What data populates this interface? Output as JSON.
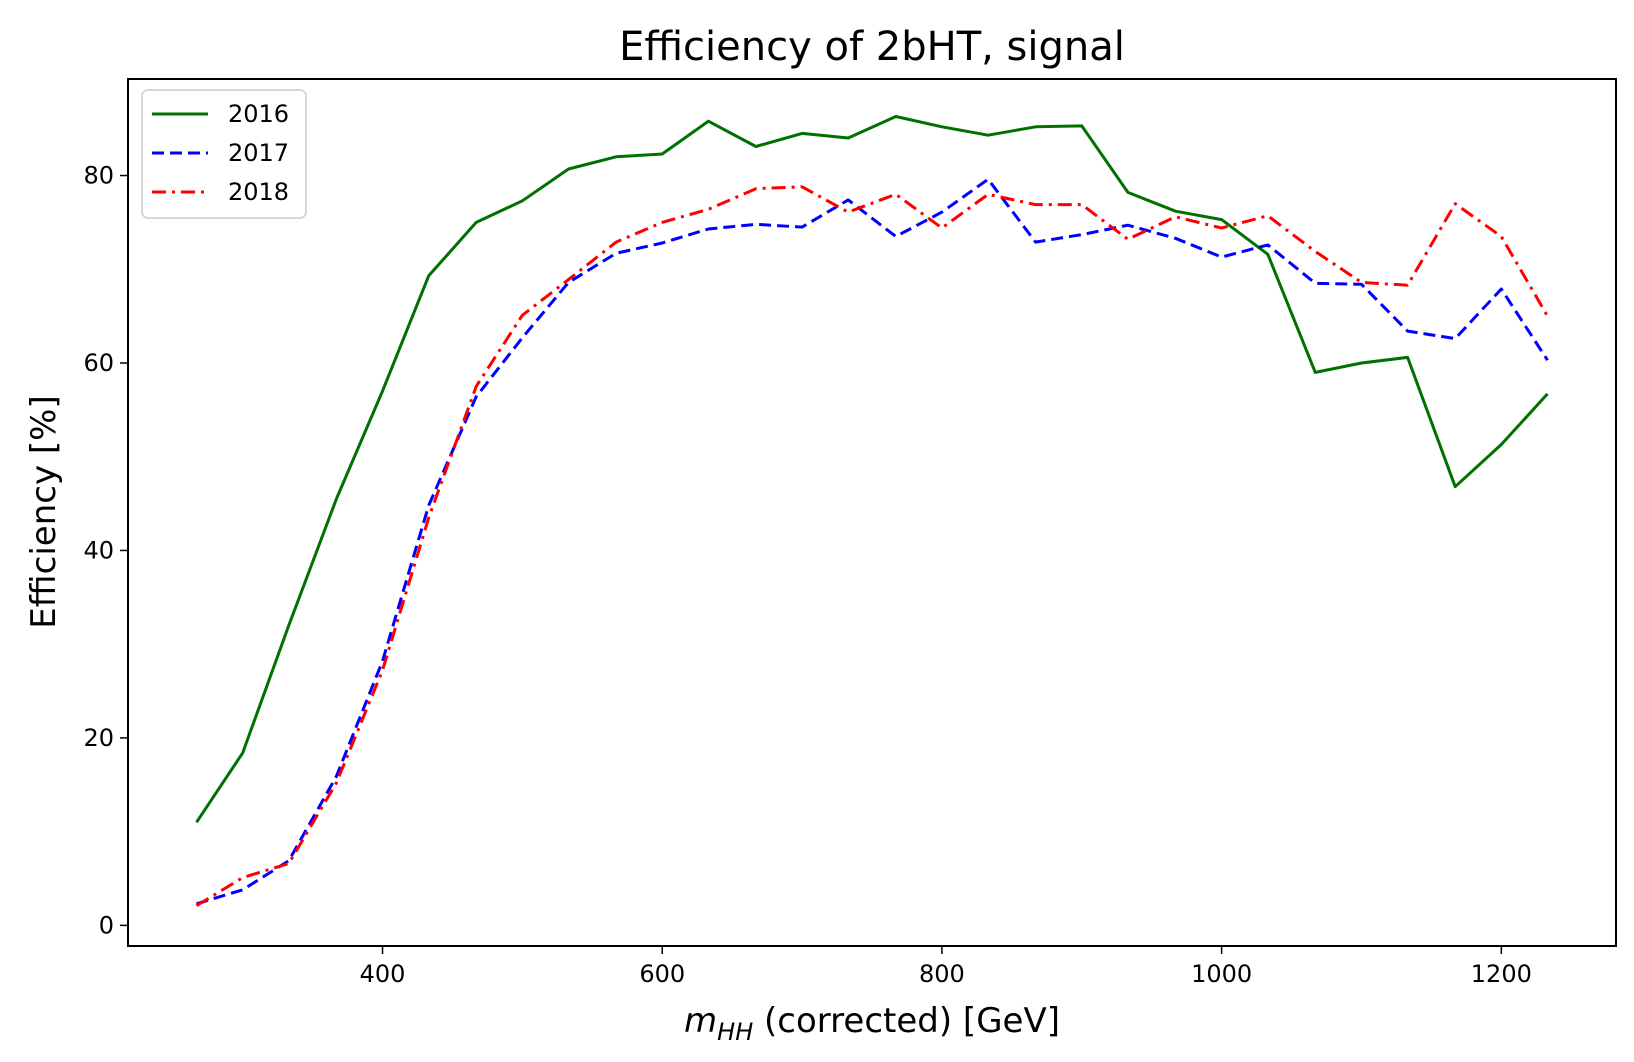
{
  "chart_data": {
    "type": "line",
    "title": "Efficiency of 2bHT, signal",
    "xlabel_symbol": "m",
    "xlabel_subscript": "HH",
    "xlabel_rest": " (corrected) [GeV]",
    "ylabel": "Efficiency [%]",
    "xlim": [
      218,
      1282
    ],
    "ylim": [
      -2.2,
      90.3
    ],
    "xticks": [
      400,
      600,
      800,
      1000,
      1200
    ],
    "yticks": [
      0,
      20,
      40,
      60,
      80
    ],
    "grid": false,
    "legend_position": "top-left",
    "x": [
      267,
      300,
      333,
      367,
      400,
      433,
      467,
      500,
      533,
      567,
      600,
      633,
      667,
      700,
      733,
      767,
      800,
      833,
      867,
      900,
      933,
      967,
      1000,
      1033,
      1067,
      1100,
      1133,
      1167,
      1200,
      1233
    ],
    "series": [
      {
        "name": "2016",
        "color": "#007000",
        "dash": "solid",
        "values": [
          11.0,
          18.4,
          32.0,
          45.5,
          57.0,
          69.3,
          75.0,
          77.3,
          80.7,
          82.0,
          82.3,
          85.8,
          83.1,
          84.5,
          84.0,
          86.3,
          85.2,
          84.3,
          85.2,
          85.3,
          78.2,
          76.2,
          75.3,
          71.6,
          59.0,
          60.0,
          60.6,
          46.8,
          51.3,
          56.7
        ]
      },
      {
        "name": "2017",
        "color": "#0000ff",
        "dash": "dashed",
        "values": [
          2.3,
          3.8,
          6.9,
          15.9,
          28.2,
          44.8,
          56.4,
          62.7,
          68.6,
          71.7,
          72.8,
          74.3,
          74.8,
          74.5,
          77.4,
          73.5,
          76.1,
          79.6,
          72.9,
          73.7,
          74.7,
          73.3,
          71.3,
          72.6,
          68.5,
          68.4,
          63.4,
          62.6,
          67.9,
          60.3
        ]
      },
      {
        "name": "2018",
        "color": "#ff0000",
        "dash": "dashdot",
        "values": [
          2.1,
          5.1,
          6.6,
          15.2,
          27.2,
          43.5,
          57.5,
          65.1,
          68.9,
          72.9,
          75.0,
          76.4,
          78.6,
          78.8,
          76.1,
          78.0,
          74.4,
          78.0,
          76.9,
          76.9,
          73.2,
          75.6,
          74.4,
          75.7,
          71.9,
          68.6,
          68.3,
          77.0,
          73.5,
          65.0
        ]
      }
    ]
  }
}
